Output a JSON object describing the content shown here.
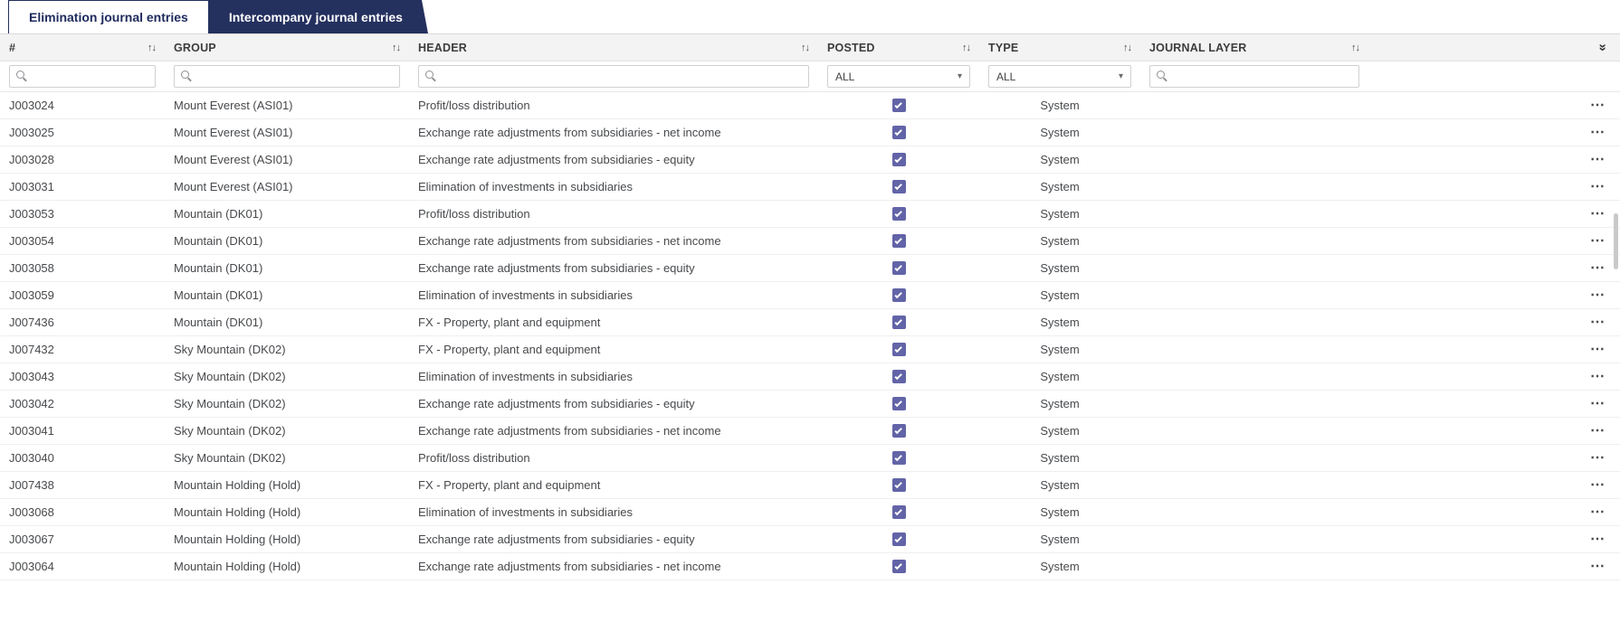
{
  "tabs": [
    {
      "label": "Elimination journal entries",
      "active": true
    },
    {
      "label": "Intercompany journal entries",
      "active": false
    }
  ],
  "icons": {
    "sort": "↑↓",
    "caret": "▾",
    "menu": "⋯",
    "collapse": "«"
  },
  "colors": {
    "tab_navy": "#24305e",
    "checkbox_purple": "#6264a7",
    "header_gray": "#f3f3f4"
  },
  "table": {
    "columns": [
      {
        "label": "#",
        "filter": "search"
      },
      {
        "label": "GROUP",
        "filter": "search"
      },
      {
        "label": "HEADER",
        "filter": "search"
      },
      {
        "label": "POSTED",
        "filter": "select"
      },
      {
        "label": "TYPE",
        "filter": "select"
      },
      {
        "label": "JOURNAL LAYER",
        "filter": "search"
      }
    ],
    "filters": {
      "posted": "ALL",
      "type": "ALL"
    },
    "rows": [
      {
        "id": "J003024",
        "group": "Mount Everest (ASI01)",
        "header": "Profit/loss distribution",
        "posted": true,
        "type": "System",
        "journal_layer": ""
      },
      {
        "id": "J003025",
        "group": "Mount Everest (ASI01)",
        "header": "Exchange rate adjustments from subsidiaries - net income",
        "posted": true,
        "type": "System",
        "journal_layer": ""
      },
      {
        "id": "J003028",
        "group": "Mount Everest (ASI01)",
        "header": "Exchange rate adjustments from subsidiaries - equity",
        "posted": true,
        "type": "System",
        "journal_layer": ""
      },
      {
        "id": "J003031",
        "group": "Mount Everest (ASI01)",
        "header": "Elimination of investments in subsidiaries",
        "posted": true,
        "type": "System",
        "journal_layer": ""
      },
      {
        "id": "J003053",
        "group": "Mountain (DK01)",
        "header": "Profit/loss distribution",
        "posted": true,
        "type": "System",
        "journal_layer": ""
      },
      {
        "id": "J003054",
        "group": "Mountain (DK01)",
        "header": "Exchange rate adjustments from subsidiaries - net income",
        "posted": true,
        "type": "System",
        "journal_layer": ""
      },
      {
        "id": "J003058",
        "group": "Mountain (DK01)",
        "header": "Exchange rate adjustments from subsidiaries - equity",
        "posted": true,
        "type": "System",
        "journal_layer": ""
      },
      {
        "id": "J003059",
        "group": "Mountain (DK01)",
        "header": "Elimination of investments in subsidiaries",
        "posted": true,
        "type": "System",
        "journal_layer": ""
      },
      {
        "id": "J007436",
        "group": "Mountain (DK01)",
        "header": "FX - Property, plant and equipment",
        "posted": true,
        "type": "System",
        "journal_layer": ""
      },
      {
        "id": "J007432",
        "group": "Sky Mountain (DK02)",
        "header": "FX - Property, plant and equipment",
        "posted": true,
        "type": "System",
        "journal_layer": ""
      },
      {
        "id": "J003043",
        "group": "Sky Mountain (DK02)",
        "header": "Elimination of investments in subsidiaries",
        "posted": true,
        "type": "System",
        "journal_layer": ""
      },
      {
        "id": "J003042",
        "group": "Sky Mountain (DK02)",
        "header": "Exchange rate adjustments from subsidiaries - equity",
        "posted": true,
        "type": "System",
        "journal_layer": ""
      },
      {
        "id": "J003041",
        "group": "Sky Mountain (DK02)",
        "header": "Exchange rate adjustments from subsidiaries - net income",
        "posted": true,
        "type": "System",
        "journal_layer": ""
      },
      {
        "id": "J003040",
        "group": "Sky Mountain (DK02)",
        "header": "Profit/loss distribution",
        "posted": true,
        "type": "System",
        "journal_layer": ""
      },
      {
        "id": "J007438",
        "group": "Mountain Holding (Hold)",
        "header": "FX - Property, plant and equipment",
        "posted": true,
        "type": "System",
        "journal_layer": ""
      },
      {
        "id": "J003068",
        "group": "Mountain Holding (Hold)",
        "header": "Elimination of investments in subsidiaries",
        "posted": true,
        "type": "System",
        "journal_layer": ""
      },
      {
        "id": "J003067",
        "group": "Mountain Holding (Hold)",
        "header": "Exchange rate adjustments from subsidiaries - equity",
        "posted": true,
        "type": "System",
        "journal_layer": ""
      },
      {
        "id": "J003064",
        "group": "Mountain Holding (Hold)",
        "header": "Exchange rate adjustments from subsidiaries - net income",
        "posted": true,
        "type": "System",
        "journal_layer": ""
      }
    ]
  }
}
